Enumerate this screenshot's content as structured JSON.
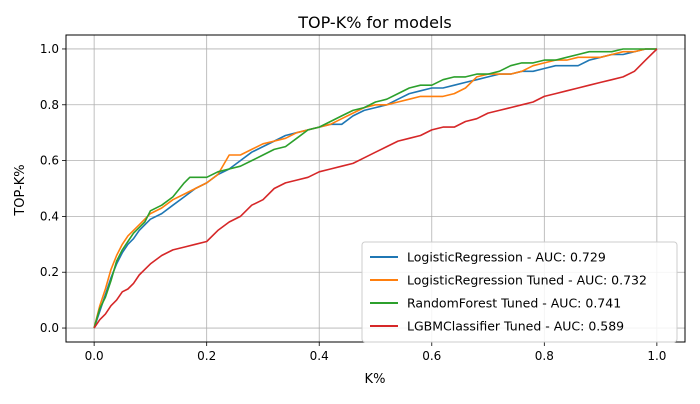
{
  "chart_data": {
    "type": "line",
    "title": "TOP-K% for models",
    "xlabel": "K%",
    "ylabel": "TOP-K%",
    "xlim": [
      -0.05,
      1.05
    ],
    "ylim": [
      -0.05,
      1.05
    ],
    "xticks": [
      0.0,
      0.2,
      0.4,
      0.6,
      0.8,
      1.0
    ],
    "yticks": [
      0.0,
      0.2,
      0.4,
      0.6,
      0.8,
      1.0
    ],
    "xtick_labels": [
      "0.0",
      "0.2",
      "0.4",
      "0.6",
      "0.8",
      "1.0"
    ],
    "ytick_labels": [
      "0.0",
      "0.2",
      "0.4",
      "0.6",
      "0.8",
      "1.0"
    ],
    "grid": true,
    "legend_position": "lower-right",
    "series": [
      {
        "name": "LogisticRegression - AUC: 0.729",
        "color": "#1f77b4",
        "x": [
          0.0,
          0.01,
          0.02,
          0.03,
          0.04,
          0.05,
          0.06,
          0.07,
          0.08,
          0.09,
          0.1,
          0.12,
          0.14,
          0.16,
          0.18,
          0.2,
          0.22,
          0.24,
          0.26,
          0.28,
          0.3,
          0.32,
          0.34,
          0.36,
          0.38,
          0.4,
          0.42,
          0.44,
          0.46,
          0.48,
          0.5,
          0.52,
          0.54,
          0.56,
          0.58,
          0.6,
          0.62,
          0.64,
          0.66,
          0.68,
          0.7,
          0.72,
          0.74,
          0.76,
          0.78,
          0.8,
          0.82,
          0.84,
          0.86,
          0.88,
          0.9,
          0.92,
          0.94,
          0.96,
          0.98,
          1.0
        ],
        "y": [
          0.0,
          0.06,
          0.12,
          0.18,
          0.23,
          0.27,
          0.3,
          0.32,
          0.35,
          0.37,
          0.39,
          0.41,
          0.44,
          0.47,
          0.5,
          0.52,
          0.55,
          0.57,
          0.6,
          0.63,
          0.65,
          0.67,
          0.69,
          0.7,
          0.71,
          0.72,
          0.73,
          0.73,
          0.76,
          0.78,
          0.79,
          0.8,
          0.82,
          0.84,
          0.85,
          0.86,
          0.86,
          0.87,
          0.88,
          0.89,
          0.9,
          0.91,
          0.91,
          0.92,
          0.92,
          0.93,
          0.94,
          0.94,
          0.94,
          0.96,
          0.97,
          0.98,
          0.98,
          0.99,
          1.0,
          1.0
        ]
      },
      {
        "name": "LogisticRegression Tuned - AUC: 0.732",
        "color": "#ff7f0e",
        "x": [
          0.0,
          0.01,
          0.02,
          0.03,
          0.04,
          0.05,
          0.06,
          0.07,
          0.08,
          0.09,
          0.1,
          0.12,
          0.14,
          0.16,
          0.18,
          0.2,
          0.22,
          0.24,
          0.26,
          0.28,
          0.3,
          0.32,
          0.34,
          0.36,
          0.38,
          0.4,
          0.42,
          0.44,
          0.46,
          0.48,
          0.5,
          0.52,
          0.54,
          0.56,
          0.58,
          0.6,
          0.62,
          0.64,
          0.66,
          0.68,
          0.7,
          0.72,
          0.74,
          0.76,
          0.78,
          0.8,
          0.82,
          0.84,
          0.86,
          0.88,
          0.9,
          0.92,
          0.94,
          0.96,
          0.98,
          1.0
        ],
        "y": [
          0.0,
          0.08,
          0.14,
          0.21,
          0.26,
          0.3,
          0.33,
          0.35,
          0.37,
          0.39,
          0.41,
          0.43,
          0.46,
          0.48,
          0.5,
          0.52,
          0.55,
          0.62,
          0.62,
          0.64,
          0.66,
          0.67,
          0.68,
          0.7,
          0.71,
          0.72,
          0.73,
          0.75,
          0.77,
          0.79,
          0.8,
          0.8,
          0.81,
          0.82,
          0.83,
          0.83,
          0.83,
          0.84,
          0.86,
          0.9,
          0.91,
          0.91,
          0.91,
          0.92,
          0.94,
          0.95,
          0.96,
          0.96,
          0.97,
          0.97,
          0.97,
          0.98,
          0.99,
          0.99,
          1.0,
          1.0
        ]
      },
      {
        "name": "RandomForest Tuned - AUC: 0.741",
        "color": "#2ca02c",
        "x": [
          0.0,
          0.01,
          0.02,
          0.03,
          0.04,
          0.05,
          0.06,
          0.07,
          0.08,
          0.09,
          0.1,
          0.12,
          0.14,
          0.16,
          0.17,
          0.2,
          0.22,
          0.24,
          0.26,
          0.28,
          0.3,
          0.32,
          0.34,
          0.36,
          0.38,
          0.4,
          0.42,
          0.44,
          0.46,
          0.48,
          0.5,
          0.52,
          0.54,
          0.56,
          0.58,
          0.6,
          0.62,
          0.64,
          0.66,
          0.68,
          0.7,
          0.72,
          0.74,
          0.76,
          0.78,
          0.8,
          0.82,
          0.84,
          0.86,
          0.88,
          0.9,
          0.92,
          0.94,
          0.96,
          0.98,
          1.0
        ],
        "y": [
          0.0,
          0.07,
          0.11,
          0.17,
          0.24,
          0.28,
          0.31,
          0.34,
          0.36,
          0.38,
          0.42,
          0.44,
          0.47,
          0.52,
          0.54,
          0.54,
          0.56,
          0.57,
          0.58,
          0.6,
          0.62,
          0.64,
          0.65,
          0.68,
          0.71,
          0.72,
          0.74,
          0.76,
          0.78,
          0.79,
          0.81,
          0.82,
          0.84,
          0.86,
          0.87,
          0.87,
          0.89,
          0.9,
          0.9,
          0.91,
          0.91,
          0.92,
          0.94,
          0.95,
          0.95,
          0.96,
          0.96,
          0.97,
          0.98,
          0.99,
          0.99,
          0.99,
          1.0,
          1.0,
          1.0,
          1.0
        ]
      },
      {
        "name": "LGBMClassifier Tuned - AUC: 0.589",
        "color": "#d62728",
        "x": [
          0.0,
          0.01,
          0.02,
          0.03,
          0.04,
          0.05,
          0.06,
          0.07,
          0.08,
          0.09,
          0.1,
          0.12,
          0.14,
          0.16,
          0.18,
          0.2,
          0.22,
          0.24,
          0.26,
          0.28,
          0.3,
          0.32,
          0.34,
          0.36,
          0.38,
          0.4,
          0.42,
          0.44,
          0.46,
          0.48,
          0.5,
          0.52,
          0.54,
          0.56,
          0.58,
          0.6,
          0.62,
          0.64,
          0.66,
          0.68,
          0.7,
          0.72,
          0.74,
          0.76,
          0.78,
          0.8,
          0.82,
          0.84,
          0.86,
          0.88,
          0.9,
          0.92,
          0.94,
          0.96,
          0.98,
          1.0
        ],
        "y": [
          0.0,
          0.03,
          0.05,
          0.08,
          0.1,
          0.13,
          0.14,
          0.16,
          0.19,
          0.21,
          0.23,
          0.26,
          0.28,
          0.29,
          0.3,
          0.31,
          0.35,
          0.38,
          0.4,
          0.44,
          0.46,
          0.5,
          0.52,
          0.53,
          0.54,
          0.56,
          0.57,
          0.58,
          0.59,
          0.61,
          0.63,
          0.65,
          0.67,
          0.68,
          0.69,
          0.71,
          0.72,
          0.72,
          0.74,
          0.75,
          0.77,
          0.78,
          0.79,
          0.8,
          0.81,
          0.83,
          0.84,
          0.85,
          0.86,
          0.87,
          0.88,
          0.89,
          0.9,
          0.92,
          0.96,
          1.0
        ]
      }
    ]
  }
}
